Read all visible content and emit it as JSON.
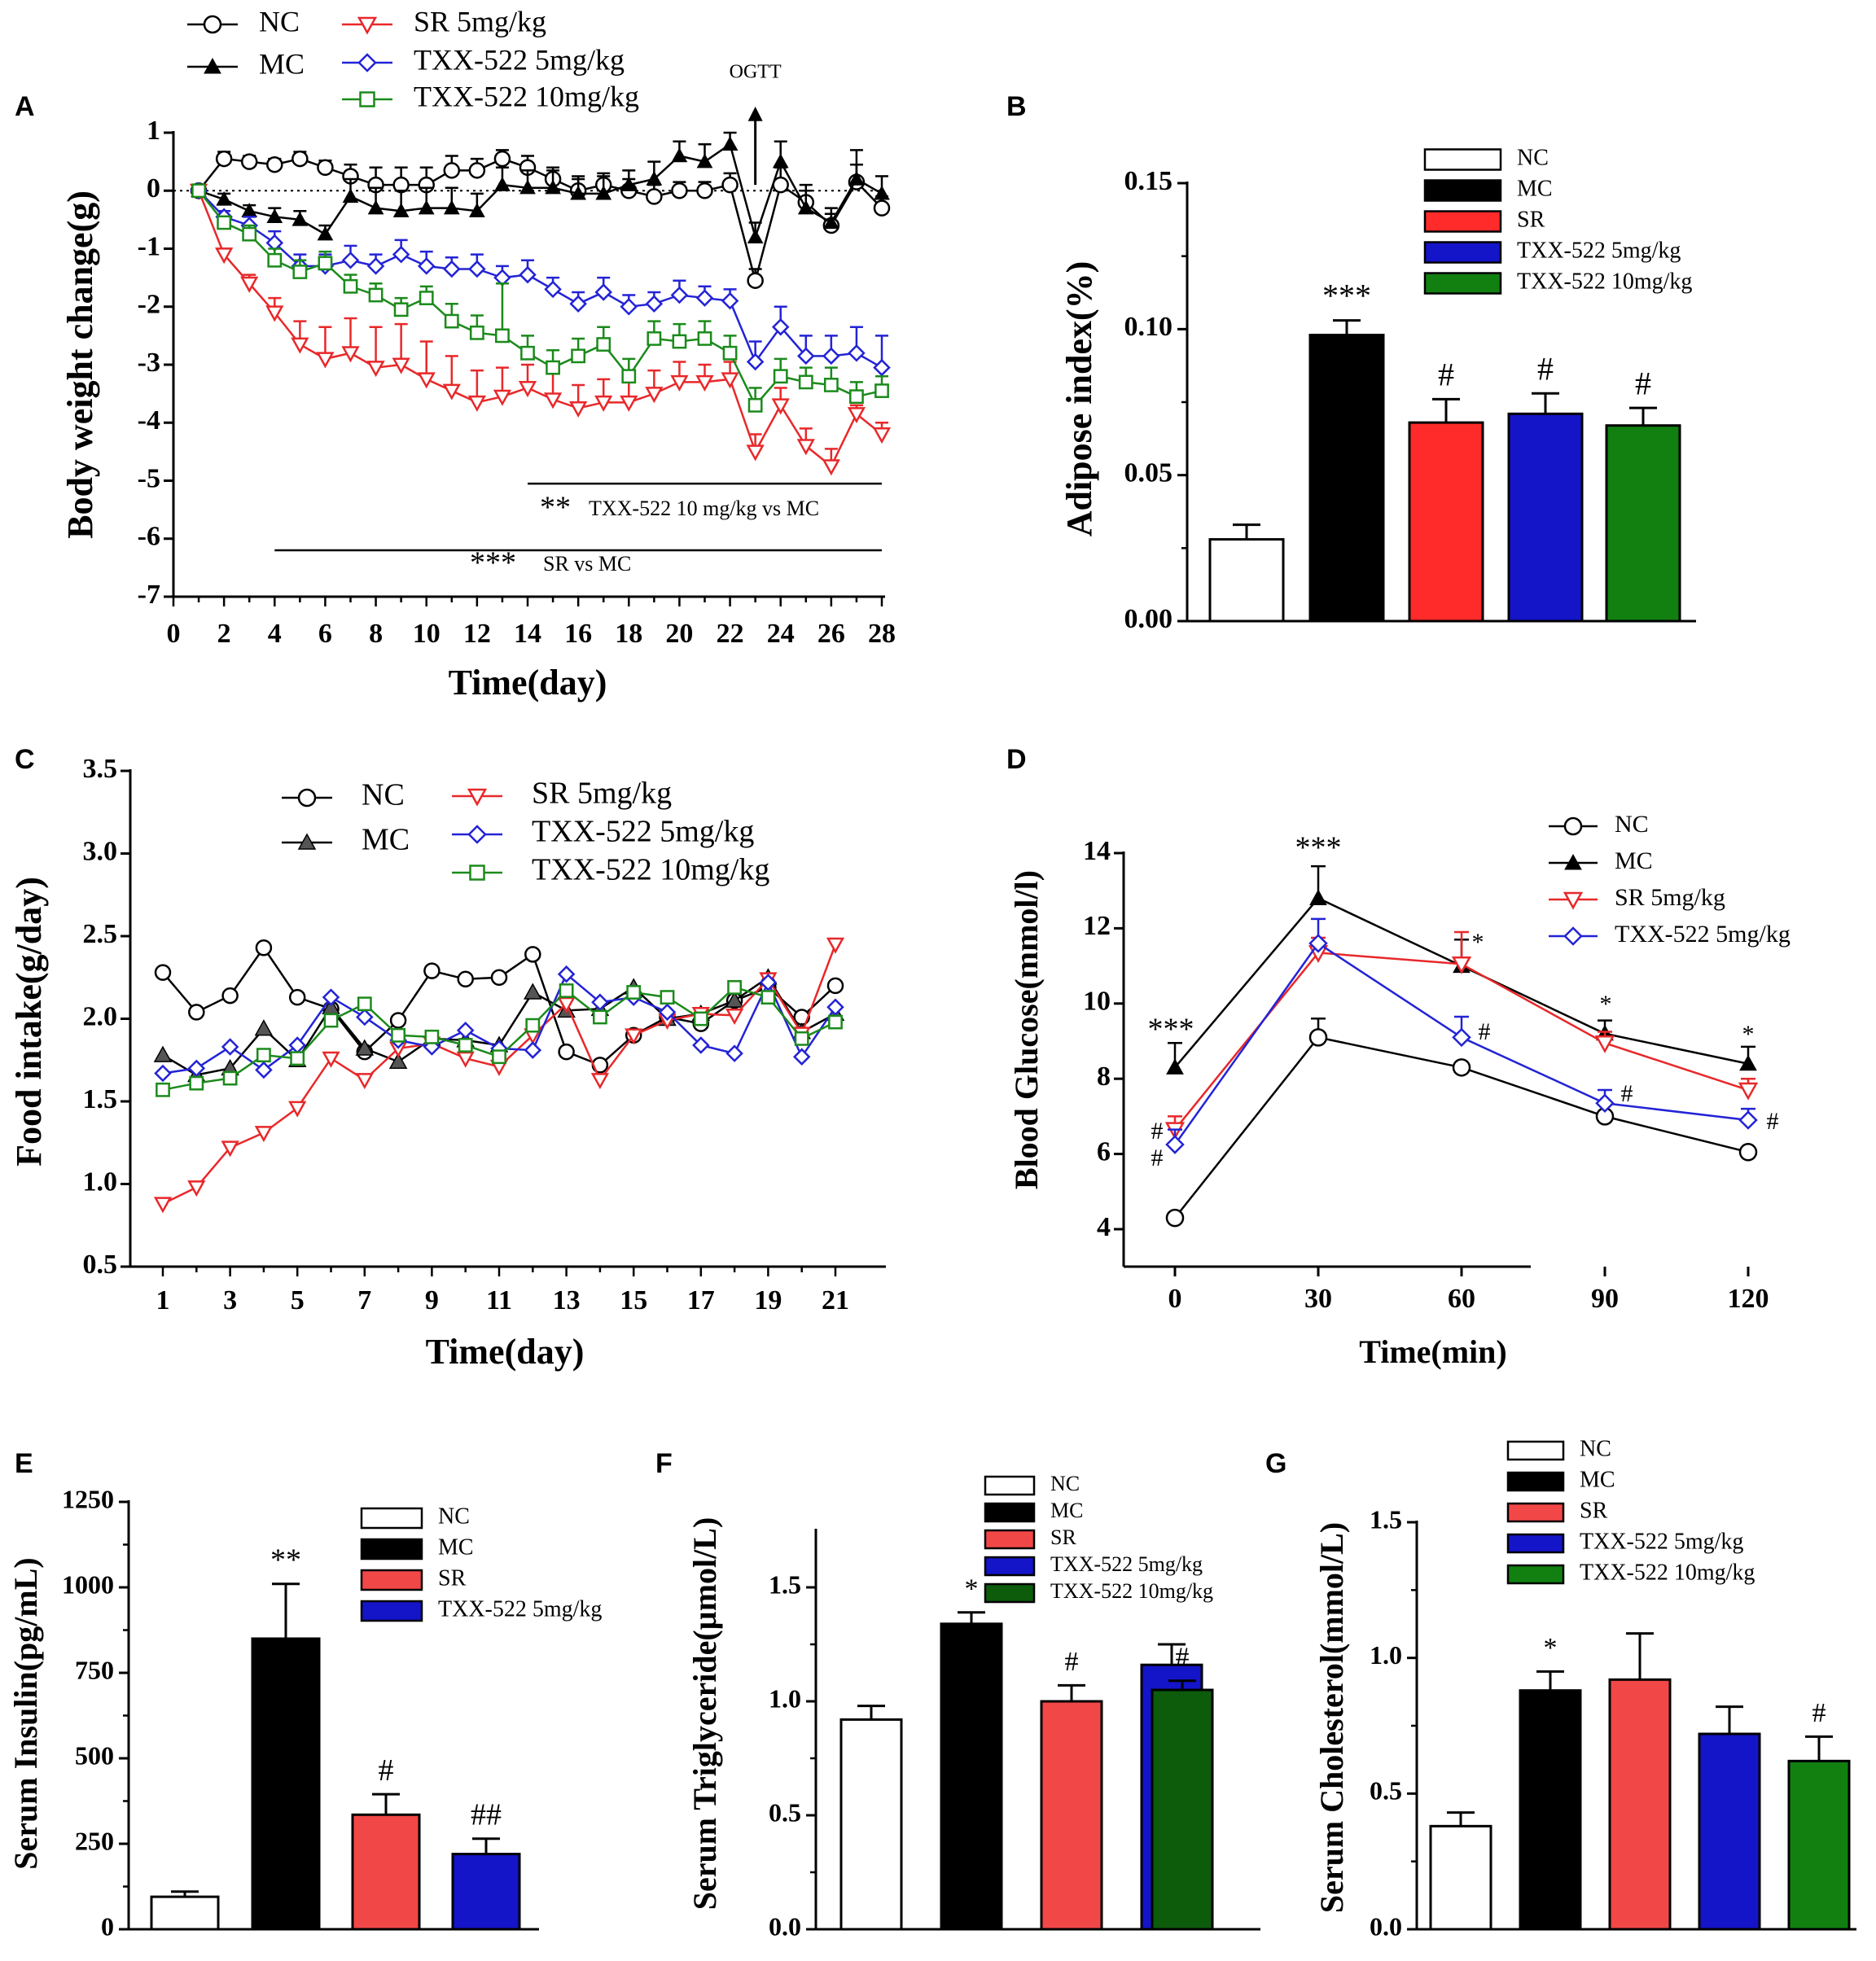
{
  "colors": {
    "NC": "#000000",
    "MC": "#000000",
    "SR": "#e8282a",
    "TXX5": "#2323d6",
    "TXX10": "#1b8a1b",
    "barNC": "#ffffff",
    "barMC": "#000000",
    "barSR": "#ff2a2a",
    "barSR2": "#f24747",
    "barTXX5": "#1414c8",
    "barTXX10": "#118011"
  },
  "chart_data": [
    {
      "panel": "A",
      "type": "line",
      "xlabel": "Time(day)",
      "ylabel": "Body weight change(g)",
      "xlim": [
        0,
        28
      ],
      "ylim": [
        -7,
        1
      ],
      "xticks": [
        "0",
        "2",
        "4",
        "6",
        "8",
        "10",
        "12",
        "14",
        "16",
        "18",
        "20",
        "22",
        "24",
        "26",
        "28"
      ],
      "yticks": [
        "1",
        "0",
        "-1",
        "-2",
        "-3",
        "-4",
        "-5",
        "-6",
        "-7"
      ],
      "x": [
        1,
        2,
        3,
        4,
        5,
        6,
        7,
        8,
        9,
        10,
        11,
        12,
        13,
        14,
        15,
        16,
        17,
        18,
        19,
        20,
        21,
        22,
        23,
        24,
        25,
        26,
        27,
        28
      ],
      "series": [
        {
          "name": "NC",
          "legend": "NC",
          "values": [
            0,
            0.55,
            0.5,
            0.45,
            0.55,
            0.4,
            0.25,
            0.1,
            0.1,
            0.1,
            0.35,
            0.35,
            0.55,
            0.4,
            0.2,
            0.0,
            0.1,
            0.0,
            -0.1,
            0.0,
            0.0,
            0.1,
            -1.55,
            0.1,
            -0.2,
            -0.6,
            0.15,
            -0.3
          ],
          "err": [
            0,
            0.12,
            0.1,
            0.1,
            0.12,
            0.12,
            0.2,
            0.3,
            0.3,
            0.3,
            0.25,
            0.2,
            0.15,
            0.2,
            0.2,
            0.2,
            0.2,
            0.2,
            0.2,
            0.15,
            0.15,
            0.2,
            0.2,
            0.3,
            0.3,
            0.2,
            0.3,
            0.2
          ]
        },
        {
          "name": "MC",
          "legend": "MC",
          "values": [
            0,
            -0.15,
            -0.35,
            -0.45,
            -0.5,
            -0.75,
            -0.1,
            -0.3,
            -0.35,
            -0.3,
            -0.3,
            -0.35,
            0.1,
            0.05,
            0.05,
            -0.05,
            -0.05,
            0.1,
            0.2,
            0.6,
            0.5,
            0.8,
            -0.8,
            0.5,
            -0.3,
            -0.55,
            0.2,
            -0.05
          ],
          "err": [
            0,
            0.1,
            0.1,
            0.15,
            0.15,
            0.15,
            0.3,
            0.35,
            0.35,
            0.35,
            0.35,
            0.3,
            0.3,
            0.3,
            0.3,
            0.3,
            0.3,
            0.25,
            0.3,
            0.25,
            0.3,
            0.2,
            0.25,
            0.35,
            0.3,
            0.25,
            0.5,
            0.3
          ]
        },
        {
          "name": "SR",
          "legend": "SR 5mg/kg",
          "values": [
            0,
            -1.1,
            -1.6,
            -2.1,
            -2.65,
            -2.9,
            -2.8,
            -3.05,
            -3.0,
            -3.25,
            -3.45,
            -3.65,
            -3.55,
            -3.4,
            -3.6,
            -3.75,
            -3.65,
            -3.65,
            -3.5,
            -3.3,
            -3.3,
            -3.25,
            -4.5,
            -3.7,
            -4.4,
            -4.75,
            -3.85,
            -4.2
          ],
          "err": [
            0,
            0.1,
            0.15,
            0.25,
            0.4,
            0.55,
            0.6,
            0.7,
            0.7,
            0.65,
            0.6,
            0.55,
            0.5,
            0.4,
            0.45,
            0.4,
            0.4,
            0.35,
            0.4,
            0.35,
            0.3,
            0.3,
            0.3,
            0.3,
            0.3,
            0.3,
            0.15,
            0.2
          ]
        },
        {
          "name": "TXX5",
          "legend": "TXX-522 5mg/kg",
          "values": [
            0,
            -0.45,
            -0.6,
            -0.9,
            -1.3,
            -1.3,
            -1.2,
            -1.3,
            -1.1,
            -1.3,
            -1.35,
            -1.35,
            -1.5,
            -1.45,
            -1.7,
            -1.95,
            -1.75,
            -2.0,
            -1.95,
            -1.8,
            -1.85,
            -1.9,
            -2.95,
            -2.35,
            -2.85,
            -2.85,
            -2.8,
            -3.05
          ],
          "err": [
            0,
            0.1,
            0.15,
            0.2,
            0.2,
            0.2,
            0.25,
            0.2,
            0.25,
            0.25,
            0.2,
            0.25,
            0.2,
            0.25,
            0.2,
            0.2,
            0.25,
            0.2,
            0.2,
            0.25,
            0.2,
            0.2,
            0.35,
            0.35,
            0.35,
            0.35,
            0.45,
            0.55
          ]
        },
        {
          "name": "TXX10",
          "legend": "TXX-522 10mg/kg",
          "values": [
            0,
            -0.55,
            -0.75,
            -1.2,
            -1.4,
            -1.25,
            -1.65,
            -1.8,
            -2.05,
            -1.85,
            -2.25,
            -2.45,
            -2.5,
            -2.8,
            -3.05,
            -2.85,
            -2.65,
            -3.2,
            -2.55,
            -2.6,
            -2.55,
            -2.8,
            -3.7,
            -3.2,
            -3.3,
            -3.35,
            -3.55,
            -3.45
          ],
          "err": [
            0,
            0.1,
            0.15,
            0.2,
            0.2,
            0.2,
            0.2,
            0.2,
            0.2,
            0.2,
            0.3,
            0.3,
            0.9,
            0.3,
            0.3,
            0.3,
            0.3,
            0.3,
            0.3,
            0.3,
            0.3,
            0.3,
            0.3,
            0.3,
            0.25,
            0.3,
            0.25,
            0.25
          ]
        }
      ],
      "annotations": {
        "ogtt": "OGTT",
        "sig_txx_stars": "**",
        "sig_txx_text": "TXX-522 10 mg/kg vs MC",
        "sig_sr_stars": "***",
        "sig_sr_text": "SR vs MC"
      },
      "sig_lines": [
        {
          "from": 14,
          "to": 28,
          "y": -5.05
        },
        {
          "from": 4,
          "to": 28,
          "y": -6.2
        }
      ]
    },
    {
      "panel": "B",
      "type": "bar",
      "ylabel": "Adipose index(%)",
      "ylim": [
        0,
        0.15
      ],
      "yticks": [
        "0.00",
        "0.05",
        "0.10",
        "0.15"
      ],
      "categories": [
        "NC",
        "MC",
        "SR",
        "TXX-522 5mg/kg",
        "TXX-522 10mg/kg"
      ],
      "values": [
        0.028,
        0.098,
        0.068,
        0.071,
        0.067
      ],
      "err": [
        0.005,
        0.005,
        0.008,
        0.007,
        0.006
      ],
      "labels": [
        "",
        "***",
        "#",
        "#",
        "#"
      ]
    },
    {
      "panel": "C",
      "type": "line",
      "xlabel": "Time(day)",
      "ylabel": "Food intake(g/day)",
      "xlim": [
        0.5,
        22
      ],
      "ylim": [
        0.5,
        3.5
      ],
      "xticks": [
        "1",
        "3",
        "5",
        "7",
        "9",
        "11",
        "13",
        "15",
        "17",
        "19",
        "21"
      ],
      "yticks": [
        "0.5",
        "1.0",
        "1.5",
        "2.0",
        "2.5",
        "3.0",
        "3.5"
      ],
      "x": [
        1,
        2,
        3,
        4,
        5,
        6,
        7,
        8,
        9,
        10,
        11,
        12,
        13,
        14,
        15,
        16,
        17,
        18,
        19,
        20,
        21
      ],
      "series": [
        {
          "name": "NC",
          "legend": "NC",
          "values": [
            2.28,
            2.04,
            2.14,
            2.43,
            2.13,
            2.06,
            1.8,
            1.99,
            2.29,
            2.24,
            2.25,
            2.39,
            1.8,
            1.72,
            1.9,
            2.01,
            1.97,
            2.11,
            2.19,
            2.01,
            2.2
          ]
        },
        {
          "name": "MC",
          "legend": "MC",
          "values": [
            1.78,
            1.66,
            1.7,
            1.94,
            1.75,
            2.07,
            1.82,
            1.74,
            1.88,
            1.87,
            1.84,
            2.16,
            2.05,
            2.06,
            2.19,
            2.0,
            2.03,
            2.11,
            2.25,
            1.92,
            2.03
          ]
        },
        {
          "name": "SR",
          "legend": "SR 5mg/kg",
          "values": [
            0.88,
            0.98,
            1.22,
            1.31,
            1.46,
            1.76,
            1.63,
            1.82,
            1.85,
            1.76,
            1.71,
            1.9,
            2.09,
            1.63,
            1.9,
            1.99,
            2.03,
            2.02,
            2.24,
            1.91,
            2.45
          ]
        },
        {
          "name": "TXX5",
          "legend": "TXX-522 5mg/kg",
          "values": [
            1.67,
            1.7,
            1.83,
            1.69,
            1.84,
            2.13,
            2.01,
            1.87,
            1.83,
            1.93,
            1.82,
            1.81,
            2.27,
            2.1,
            2.13,
            2.04,
            1.84,
            1.79,
            2.22,
            1.77,
            2.07
          ]
        },
        {
          "name": "TXX10",
          "legend": "TXX-522 10mg/kg",
          "values": [
            1.57,
            1.61,
            1.64,
            1.78,
            1.76,
            1.99,
            2.09,
            1.9,
            1.89,
            1.84,
            1.77,
            1.96,
            2.17,
            2.01,
            2.16,
            2.13,
            2.0,
            2.19,
            2.13,
            1.88,
            1.98
          ]
        }
      ]
    },
    {
      "panel": "D",
      "type": "line",
      "xlabel": "Time(min)",
      "ylabel": "Blood Glucose(mmol/l)",
      "xlim": [
        -10,
        130
      ],
      "ylim": [
        4,
        14
      ],
      "xticks": [
        "0",
        "30",
        "60",
        "90",
        "120"
      ],
      "yticks": [
        "4",
        "6",
        "8",
        "10",
        "12",
        "14"
      ],
      "x": [
        0,
        30,
        60,
        90,
        120
      ],
      "series": [
        {
          "name": "NC",
          "legend": "NC",
          "values": [
            4.3,
            9.1,
            8.3,
            7.0,
            6.05
          ],
          "err": [
            0,
            0.5,
            0,
            0,
            0
          ]
        },
        {
          "name": "MC",
          "legend": "MC",
          "values": [
            8.3,
            12.8,
            11.0,
            9.2,
            8.4
          ],
          "err": [
            0.65,
            0.85,
            0.7,
            0.35,
            0.45
          ]
        },
        {
          "name": "SR",
          "legend": "SR 5mg/kg",
          "values": [
            6.65,
            11.35,
            11.05,
            8.95,
            7.7
          ],
          "err": [
            0.35,
            0.4,
            0.85,
            0.3,
            0.3
          ]
        },
        {
          "name": "TXX5",
          "legend": "TXX-522 5mg/kg",
          "values": [
            6.25,
            11.6,
            9.1,
            7.35,
            6.9
          ],
          "err": [
            0.4,
            0.65,
            0.55,
            0.35,
            0.3
          ]
        }
      ],
      "annotations": {
        "mc0": "***",
        "mc30": "***",
        "mc60": "*",
        "mc90": "*",
        "mc120": "*",
        "h0a": "#",
        "h0b": "#",
        "h60": "#",
        "h90": "#",
        "h120": "#"
      }
    },
    {
      "panel": "E",
      "type": "bar",
      "ylabel": "Serum Insulin(pg/mL)",
      "ylim": [
        0,
        1250
      ],
      "yticks": [
        "0",
        "250",
        "500",
        "750",
        "1000",
        "1250"
      ],
      "categories": [
        "NC",
        "MC",
        "SR",
        "TXX-522 5mg/kg"
      ],
      "values": [
        95,
        850,
        335,
        220
      ],
      "err": [
        15,
        160,
        60,
        45
      ],
      "labels": [
        "",
        "**",
        "#",
        "##"
      ]
    },
    {
      "panel": "F",
      "type": "bar",
      "ylabel": "Serum Triglyceride(µmol/L)",
      "ylim": [
        0,
        1.75
      ],
      "yticks": [
        "0.0",
        "0.5",
        "1.0",
        "1.5"
      ],
      "categories": [
        "NC",
        "MC",
        "SR",
        "TXX-522 5mg/kg",
        "TXX-522 10mg/kg"
      ],
      "values": [
        0.92,
        1.34,
        1.0,
        1.16,
        1.05
      ],
      "err": [
        0.06,
        0.05,
        0.07,
        0.09,
        0.04
      ],
      "labels": [
        "",
        "*",
        "#",
        "",
        "#"
      ]
    },
    {
      "panel": "G",
      "type": "bar",
      "ylabel": "Serum Cholesterol(mmol/L)",
      "ylim": [
        0,
        1.5
      ],
      "yticks": [
        "0.0",
        "0.5",
        "1.0",
        "1.5"
      ],
      "categories": [
        "NC",
        "MC",
        "SR",
        "TXX-522 5mg/kg",
        "TXX-522 10mg/kg"
      ],
      "values": [
        0.38,
        0.88,
        0.92,
        0.72,
        0.62
      ],
      "err": [
        0.05,
        0.07,
        0.17,
        0.1,
        0.09
      ],
      "labels": [
        "",
        "*",
        "",
        "",
        "#"
      ]
    }
  ]
}
